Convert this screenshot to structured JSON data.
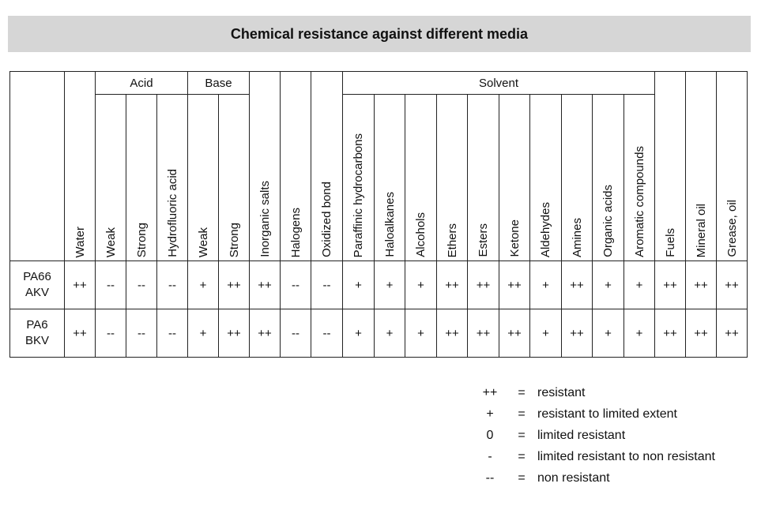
{
  "title": "Chemical resistance against different media",
  "groups": {
    "acid": "Acid",
    "base": "Base",
    "solvent": "Solvent"
  },
  "columns": {
    "water": "Water",
    "acid_weak": "Weak",
    "acid_strong": "Strong",
    "hydrofluoric": "Hydrofluoric acid",
    "base_weak": "Weak",
    "base_strong": "Strong",
    "inorganic_salts": "Inorganic salts",
    "halogens": "Halogens",
    "oxidized_bond": "Oxidized bond",
    "paraffinic": "Paraffinic hydrocarbons",
    "haloalkanes": "Haloalkanes",
    "alcohols": "Alcohols",
    "ethers": "Ethers",
    "esters": "Esters",
    "ketone": "Ketone",
    "aldehydes": "Aldehydes",
    "amines": "Amines",
    "organic_acids": "Organic acids",
    "aromatic": "Aromatic compounds",
    "fuels": "Fuels",
    "mineral_oil": "Mineral oil",
    "grease_oil": "Grease, oil"
  },
  "rows": [
    {
      "label_line1": "PA66",
      "label_line2": "AKV",
      "values": [
        "++",
        "--",
        "--",
        "--",
        "+",
        "++",
        "++",
        "--",
        "--",
        "+",
        "+",
        "+",
        "++",
        "++",
        "++",
        "+",
        "++",
        "+",
        "+",
        "++",
        "++",
        "++"
      ]
    },
    {
      "label_line1": "PA6",
      "label_line2": "BKV",
      "values": [
        "++",
        "--",
        "--",
        "--",
        "+",
        "++",
        "++",
        "--",
        "--",
        "+",
        "+",
        "+",
        "++",
        "++",
        "++",
        "+",
        "++",
        "+",
        "+",
        "++",
        "++",
        "++"
      ]
    }
  ],
  "legend": [
    {
      "symbol": "++",
      "eq": "=",
      "desc": "resistant"
    },
    {
      "symbol": "+",
      "eq": "=",
      "desc": "resistant to limited extent"
    },
    {
      "symbol": "0",
      "eq": "=",
      "desc": "limited resistant"
    },
    {
      "symbol": "-",
      "eq": "=",
      "desc": "limited resistant to non resistant"
    },
    {
      "symbol": "--",
      "eq": "=",
      "desc": "non resistant"
    }
  ]
}
